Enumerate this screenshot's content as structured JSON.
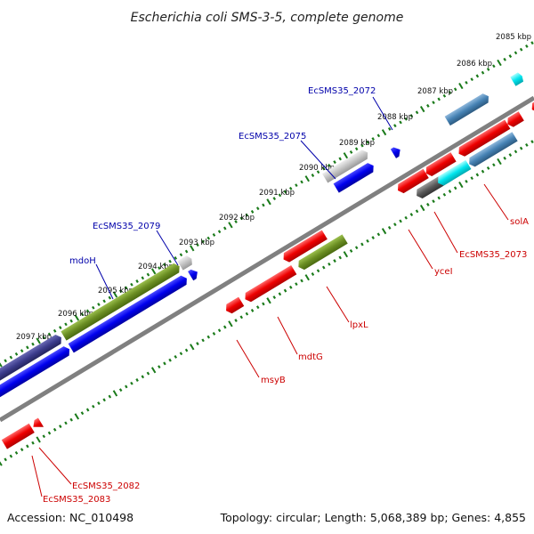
{
  "title": "Escherichia coli SMS-3-5, complete genome",
  "accession": "Accession: NC_010498",
  "topology": "Topology: circular; Length: 5,068,389 bp; Genes: 4,855",
  "colors": {
    "backbone": "#808080",
    "tick": "#1a7a1a",
    "forward_label": "#0000aa",
    "reverse_label": "#cc0000",
    "red": "#e00000",
    "blue": "#0000dd",
    "olive": "#6b8e23",
    "navy": "#3c3c8c",
    "gray": "#c0c0c0",
    "cyan": "#00e5ee",
    "steel": "#4682b4",
    "darkgray": "#5a5a5a"
  },
  "ticks": [
    "2085 kbp",
    "2086 kbp",
    "2087 kbp",
    "2088 kbp",
    "2089 kbp",
    "2090 kbp",
    "2091 kbp",
    "2092 kbp",
    "2093 kbp",
    "2094 kbp",
    "2095 kbp",
    "2096 kbp",
    "2097 kbp"
  ],
  "forward_labels": [
    "EcSMS35_2072",
    "EcSMS35_2075",
    "EcSMS35_2079",
    "mdoH"
  ],
  "reverse_labels": [
    "solA",
    "EcSMS35_2073",
    "yceI",
    "lpxL",
    "mdtG",
    "msyB",
    "EcSMS35_2082",
    "EcSMS35_2083"
  ]
}
